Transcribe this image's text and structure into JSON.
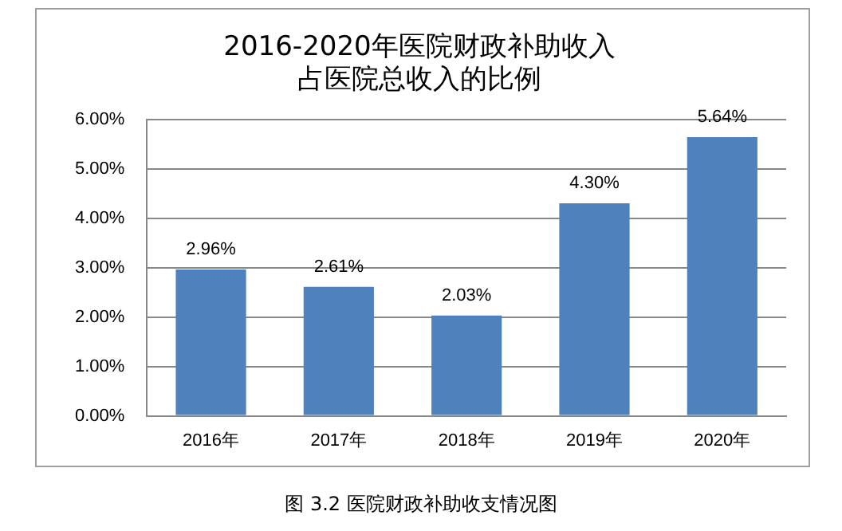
{
  "chart_data": {
    "type": "bar",
    "title": "2016-2020年医院财政补助收入占医院总收入的比例",
    "categories": [
      "2016年",
      "2017年",
      "2018年",
      "2019年",
      "2020年"
    ],
    "values": [
      2.96,
      2.61,
      2.03,
      4.3,
      5.64
    ],
    "color": "#4f81bd",
    "value_labels": [
      "2.96%",
      "2.61%",
      "2.03%",
      "4.30%",
      "5.64%"
    ],
    "ylim": [
      0,
      6
    ],
    "yticks": [
      {
        "value": 0,
        "label": "0.00%"
      },
      {
        "value": 1,
        "label": "1.00%"
      },
      {
        "value": 2,
        "label": "2.00%"
      },
      {
        "value": 3,
        "label": "3.00%"
      },
      {
        "value": 4,
        "label": "4.00%"
      },
      {
        "value": 5,
        "label": "5.00%"
      },
      {
        "value": 6,
        "label": "6.00%"
      }
    ],
    "grid": "y",
    "legend": false,
    "annotations": [
      "图 3.2 医院财政补助收支情况图"
    ]
  }
}
